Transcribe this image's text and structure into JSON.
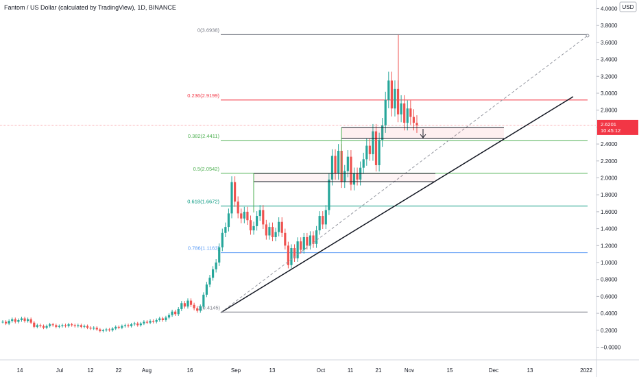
{
  "header": {
    "title": "Fantom / US Dollar (calculated by TradingView), 1D, BINANCE",
    "currency": "USD"
  },
  "price_scale": {
    "labels": [
      "4.0000",
      "3.8000",
      "3.6000",
      "3.4000",
      "3.2000",
      "3.0000",
      "2.8000",
      "2.6000",
      "2.4000",
      "2.2000",
      "2.0000",
      "1.8000",
      "1.6000",
      "1.4000",
      "1.2000",
      "1.0000",
      "0.8000",
      "0.6000",
      "0.4000",
      "0.2000",
      "−0.0000"
    ]
  },
  "current_price": {
    "value": "2.6201",
    "countdown": "10:45:12",
    "color": "#f23645"
  },
  "fib_levels": [
    {
      "label": "0(3.6938)",
      "value": 3.6938,
      "color": "#787b86"
    },
    {
      "label": "0.236(2.9199)",
      "value": 2.9199,
      "color": "#f23645"
    },
    {
      "label": "0.382(2.4411)",
      "value": 2.4411,
      "color": "#4caf50"
    },
    {
      "label": "0.5(2.0542)",
      "value": 2.0542,
      "color": "#4caf50"
    },
    {
      "label": "0.618(1.6672)",
      "value": 1.6672,
      "color": "#089981"
    },
    {
      "label": "0.786(1.1163)",
      "value": 1.1163,
      "color": "#5b9cf6"
    },
    {
      "label": "1(0.4145)",
      "value": 0.4145,
      "color": "#787b86"
    }
  ],
  "colors": {
    "up": "#26a69a",
    "down": "#ef5350",
    "grid": "#f0f3fa",
    "trend": "#131722"
  },
  "chart_data": {
    "type": "candlestick",
    "title": "Fantom / US Dollar (calculated by TradingView), 1D, BINANCE",
    "x_tick_labels": [
      "14",
      "Jul",
      "12",
      "22",
      "Aug",
      "16",
      "Sep",
      "13",
      "Oct",
      "11",
      "21",
      "Nov",
      "15",
      "Dec",
      "13",
      "2022"
    ],
    "y_range": [
      -0.05,
      4.0
    ],
    "y_unit": "USD",
    "grid": false,
    "candles": [
      [
        0.3,
        0.3
      ],
      [
        0.3,
        0.28
      ],
      [
        0.28,
        0.31
      ],
      [
        0.31,
        0.33
      ],
      [
        0.33,
        0.3
      ],
      [
        0.3,
        0.32
      ],
      [
        0.32,
        0.34
      ],
      [
        0.34,
        0.31
      ],
      [
        0.31,
        0.33
      ],
      [
        0.33,
        0.29
      ],
      [
        0.29,
        0.24
      ],
      [
        0.24,
        0.26
      ],
      [
        0.26,
        0.25
      ],
      [
        0.25,
        0.23
      ],
      [
        0.23,
        0.25
      ],
      [
        0.25,
        0.27
      ],
      [
        0.27,
        0.26
      ],
      [
        0.26,
        0.24
      ],
      [
        0.24,
        0.25
      ],
      [
        0.25,
        0.26
      ],
      [
        0.26,
        0.25
      ],
      [
        0.25,
        0.27
      ],
      [
        0.27,
        0.26
      ],
      [
        0.26,
        0.25
      ],
      [
        0.25,
        0.26
      ],
      [
        0.26,
        0.24
      ],
      [
        0.24,
        0.25
      ],
      [
        0.25,
        0.23
      ],
      [
        0.23,
        0.22
      ],
      [
        0.22,
        0.23
      ],
      [
        0.23,
        0.21
      ],
      [
        0.21,
        0.19
      ],
      [
        0.19,
        0.2
      ],
      [
        0.2,
        0.21
      ],
      [
        0.21,
        0.2
      ],
      [
        0.2,
        0.22
      ],
      [
        0.22,
        0.24
      ],
      [
        0.24,
        0.23
      ],
      [
        0.23,
        0.25
      ],
      [
        0.25,
        0.26
      ],
      [
        0.26,
        0.25
      ],
      [
        0.25,
        0.27
      ],
      [
        0.27,
        0.28
      ],
      [
        0.28,
        0.26
      ],
      [
        0.26,
        0.28
      ],
      [
        0.28,
        0.3
      ],
      [
        0.3,
        0.29
      ],
      [
        0.29,
        0.31
      ],
      [
        0.31,
        0.3
      ],
      [
        0.3,
        0.32
      ],
      [
        0.32,
        0.34
      ],
      [
        0.34,
        0.32
      ],
      [
        0.32,
        0.35
      ],
      [
        0.35,
        0.38
      ],
      [
        0.38,
        0.42
      ],
      [
        0.42,
        0.39
      ],
      [
        0.39,
        0.45
      ],
      [
        0.45,
        0.52
      ],
      [
        0.52,
        0.48
      ],
      [
        0.48,
        0.55
      ],
      [
        0.55,
        0.5
      ],
      [
        0.5,
        0.46
      ],
      [
        0.46,
        0.43
      ],
      [
        0.43,
        0.48
      ],
      [
        0.48,
        0.62
      ],
      [
        0.62,
        0.74
      ],
      [
        0.74,
        0.82
      ],
      [
        0.82,
        0.92
      ],
      [
        0.92,
        1.0
      ],
      [
        1.0,
        1.18
      ],
      [
        1.18,
        1.35
      ],
      [
        1.35,
        1.42
      ],
      [
        1.42,
        1.58
      ],
      [
        1.58,
        1.95
      ],
      [
        1.95,
        1.72
      ],
      [
        1.72,
        1.58
      ],
      [
        1.58,
        1.52
      ],
      [
        1.52,
        1.6
      ],
      [
        1.6,
        1.5
      ],
      [
        1.5,
        1.38
      ],
      [
        1.38,
        1.43
      ],
      [
        1.43,
        1.55
      ],
      [
        1.55,
        1.62
      ],
      [
        1.62,
        1.45
      ],
      [
        1.45,
        1.32
      ],
      [
        1.32,
        1.42
      ],
      [
        1.42,
        1.3
      ],
      [
        1.3,
        1.36
      ],
      [
        1.36,
        1.48
      ],
      [
        1.48,
        1.35
      ],
      [
        1.35,
        1.2
      ],
      [
        1.2,
        0.97
      ],
      [
        0.97,
        1.17
      ],
      [
        1.17,
        1.05
      ],
      [
        1.05,
        1.25
      ],
      [
        1.25,
        1.15
      ],
      [
        1.15,
        1.3
      ],
      [
        1.3,
        1.2
      ],
      [
        1.2,
        1.32
      ],
      [
        1.32,
        1.22
      ],
      [
        1.22,
        1.38
      ],
      [
        1.38,
        1.55
      ],
      [
        1.55,
        1.45
      ],
      [
        1.45,
        1.62
      ],
      [
        1.62,
        1.98
      ],
      [
        1.98,
        2.26
      ],
      [
        2.26,
        2.05
      ],
      [
        2.05,
        2.32
      ],
      [
        2.32,
        1.95
      ],
      [
        1.95,
        2.08
      ],
      [
        2.08,
        2.25
      ],
      [
        2.25,
        1.92
      ],
      [
        1.92,
        2.05
      ],
      [
        2.05,
        1.98
      ],
      [
        1.98,
        2.12
      ],
      [
        2.12,
        2.22
      ],
      [
        2.22,
        2.38
      ],
      [
        2.38,
        2.28
      ],
      [
        2.28,
        2.55
      ],
      [
        2.55,
        2.15
      ],
      [
        2.15,
        2.45
      ],
      [
        2.45,
        2.62
      ],
      [
        2.62,
        2.92
      ],
      [
        2.92,
        3.15
      ],
      [
        3.15,
        2.82
      ],
      [
        2.82,
        3.05
      ],
      [
        3.05,
        2.75
      ],
      [
        2.75,
        2.88
      ],
      [
        2.88,
        2.65
      ],
      [
        2.65,
        2.82
      ],
      [
        2.82,
        2.72
      ],
      [
        2.72,
        2.65
      ],
      [
        2.65,
        2.62
      ]
    ]
  }
}
